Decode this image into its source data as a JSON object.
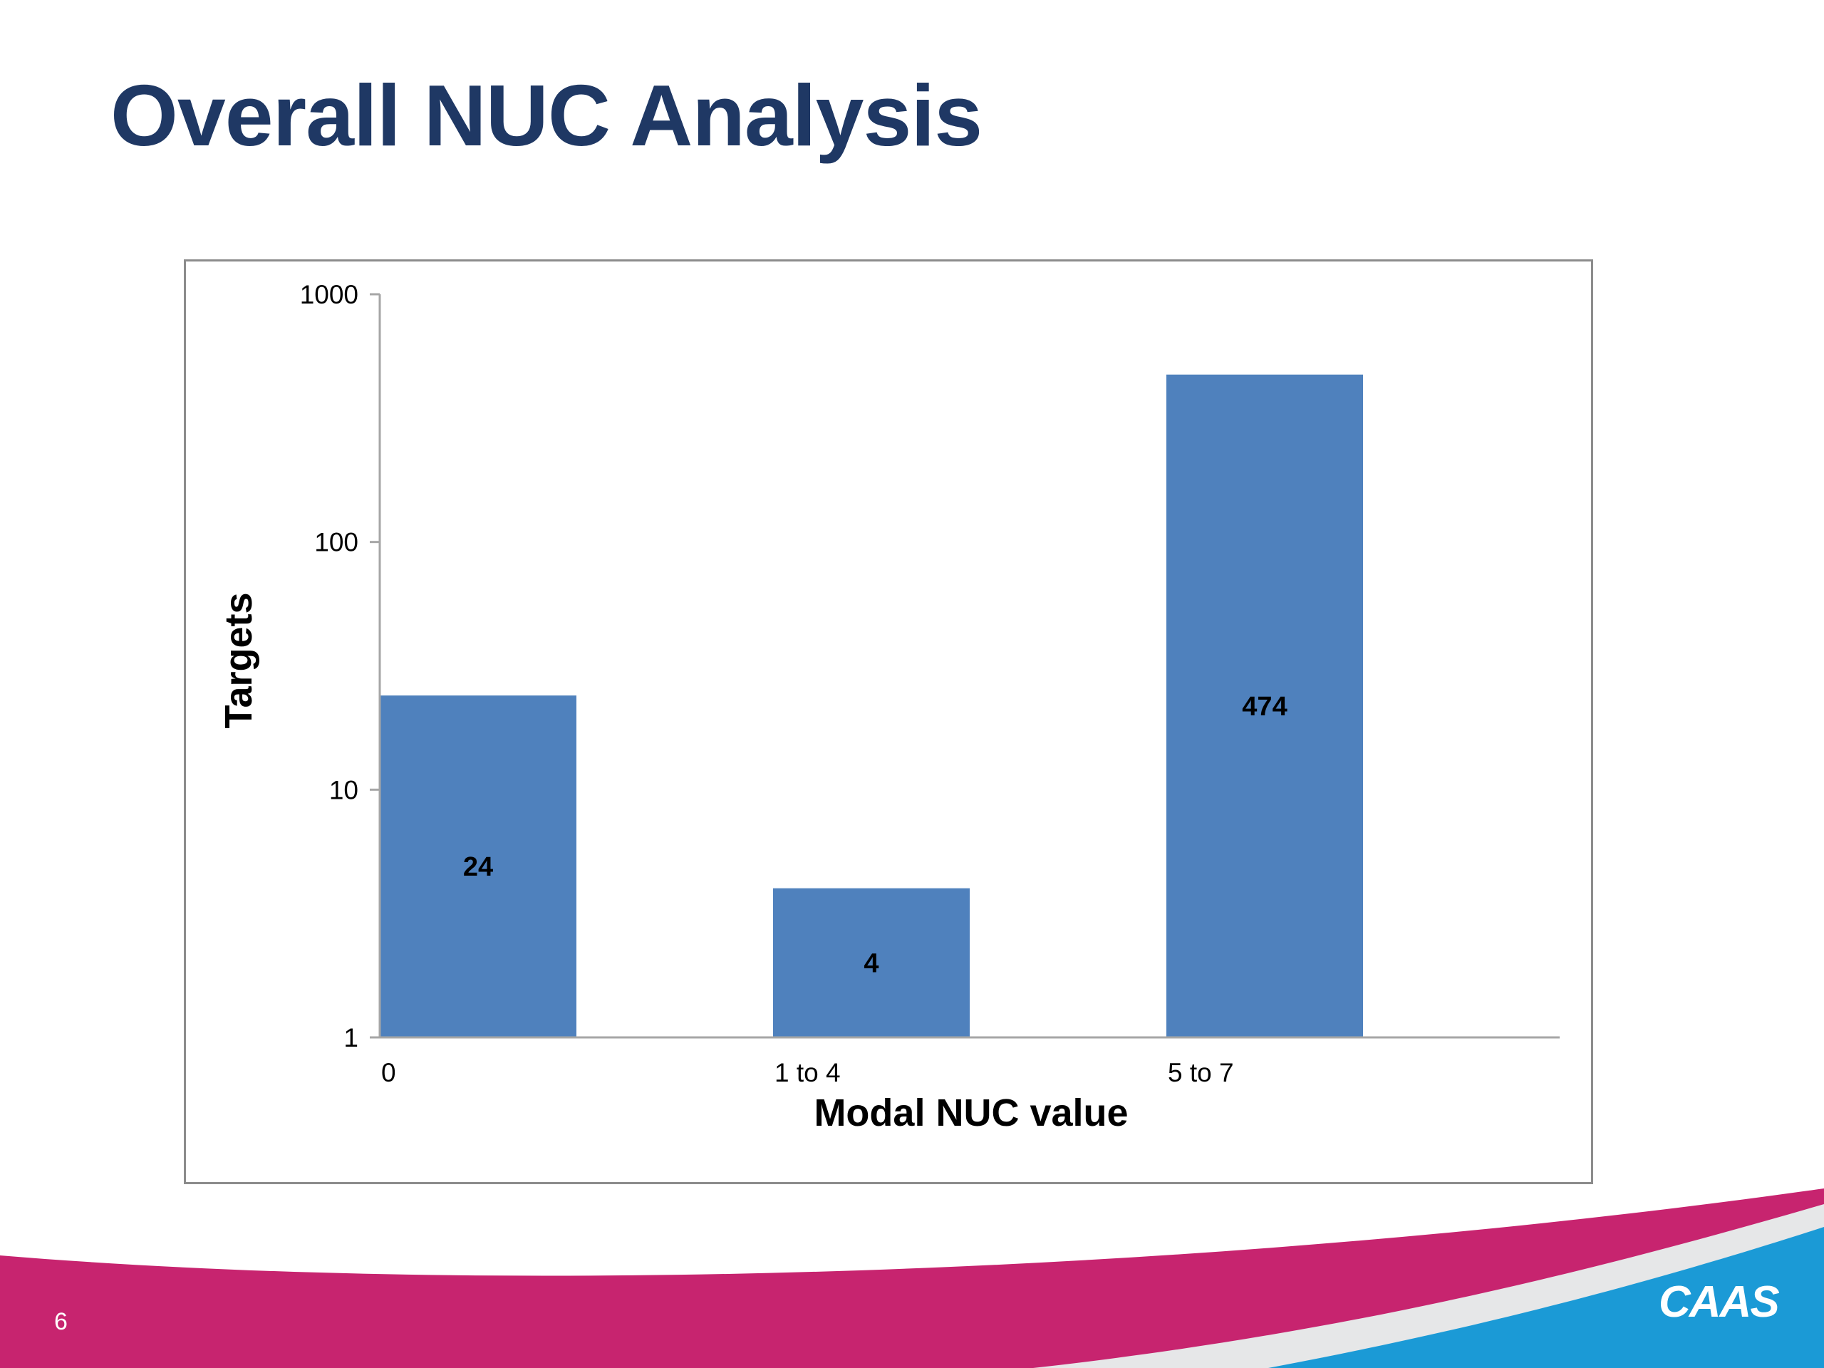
{
  "slide": {
    "title": "Overall NUC Analysis",
    "page_number": "6",
    "logo_text": "CAAS"
  },
  "colors": {
    "title": "#1f3864",
    "bar": "#4f81bd",
    "footer_magenta": "#c7246f",
    "footer_gray": "#e6e7e8",
    "footer_blue": "#1b9ad6"
  },
  "chart_data": {
    "type": "bar",
    "categories": [
      "0",
      "1 to 4",
      "5 to 7"
    ],
    "values": [
      24,
      4,
      474
    ],
    "data_labels": [
      "24",
      "4",
      "474"
    ],
    "xlabel": "Modal NUC value",
    "ylabel": "Targets",
    "yscale": "log",
    "ylim": [
      1,
      1000
    ],
    "yticks": [
      "1",
      "10",
      "100",
      "1000"
    ],
    "grid": false,
    "legend": "none"
  }
}
